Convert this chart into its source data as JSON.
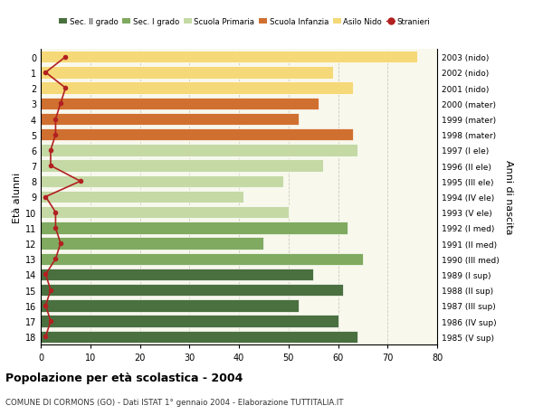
{
  "ages": [
    18,
    17,
    16,
    15,
    14,
    13,
    12,
    11,
    10,
    9,
    8,
    7,
    6,
    5,
    4,
    3,
    2,
    1,
    0
  ],
  "years_by_age": {
    "18": "1985 (V sup)",
    "17": "1986 (IV sup)",
    "16": "1987 (III sup)",
    "15": "1988 (II sup)",
    "14": "1989 (I sup)",
    "13": "1990 (III med)",
    "12": "1991 (II med)",
    "11": "1992 (I med)",
    "10": "1993 (V ele)",
    "9": "1994 (IV ele)",
    "8": "1995 (III ele)",
    "7": "1996 (II ele)",
    "6": "1997 (I ele)",
    "5": "1998 (mater)",
    "4": "1999 (mater)",
    "3": "2000 (mater)",
    "2": "2001 (nido)",
    "1": "2002 (nido)",
    "0": "2003 (nido)"
  },
  "bar_values_by_age": {
    "18": 64,
    "17": 60,
    "16": 52,
    "15": 61,
    "14": 55,
    "13": 65,
    "12": 45,
    "11": 62,
    "10": 50,
    "9": 41,
    "8": 49,
    "7": 57,
    "6": 64,
    "5": 63,
    "4": 52,
    "3": 56,
    "2": 63,
    "1": 59,
    "0": 76
  },
  "stranieri_by_age": {
    "18": 1,
    "17": 2,
    "16": 1,
    "15": 2,
    "14": 1,
    "13": 3,
    "12": 4,
    "11": 3,
    "10": 3,
    "9": 1,
    "8": 8,
    "7": 2,
    "6": 2,
    "5": 3,
    "4": 3,
    "3": 4,
    "2": 5,
    "1": 1,
    "0": 5
  },
  "bar_colors_by_age": {
    "18": "#4a7040",
    "17": "#4a7040",
    "16": "#4a7040",
    "15": "#4a7040",
    "14": "#4a7040",
    "13": "#7faa60",
    "12": "#7faa60",
    "11": "#7faa60",
    "10": "#c5d9a5",
    "9": "#c5d9a5",
    "8": "#c5d9a5",
    "7": "#c5d9a5",
    "6": "#c5d9a5",
    "5": "#d07030",
    "4": "#d07030",
    "3": "#d07030",
    "2": "#f5d878",
    "1": "#f5d878",
    "0": "#f5d878"
  },
  "legend_labels": [
    "Sec. II grado",
    "Sec. I grado",
    "Scuola Primaria",
    "Scuola Infanzia",
    "Asilo Nido",
    "Stranieri"
  ],
  "legend_colors": [
    "#4a7040",
    "#7faa60",
    "#c5d9a5",
    "#d07030",
    "#f5d878",
    "#b22020"
  ],
  "stranieri_color": "#b22020",
  "ylabel_left": "Età alunni",
  "ylabel_right": "Anni di nascita",
  "title": "Popolazione per età scolastica - 2004",
  "subtitle": "COMUNE DI CORMONS (GO) - Dati ISTAT 1° gennaio 2004 - Elaborazione TUTTITALIA.IT",
  "xlim": [
    0,
    80
  ],
  "xticks": [
    0,
    10,
    20,
    30,
    40,
    50,
    60,
    70,
    80
  ],
  "background_color": "#ffffff",
  "plot_bg_color": "#f8f8ec",
  "grid_color": "#ccccbb"
}
